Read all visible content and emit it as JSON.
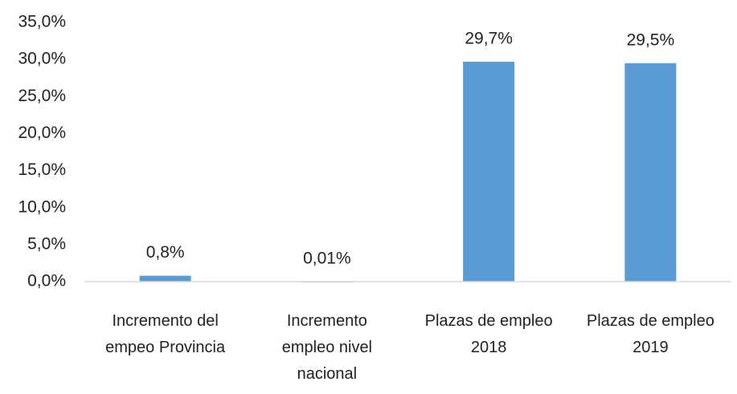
{
  "chart_data": {
    "type": "bar",
    "categories": [
      "Incremento del empeo Provincia",
      "Incremento empleo nivel nacional",
      "Plazas de empleo 2018",
      "Plazas de empleo 2019"
    ],
    "values": [
      0.8,
      0.01,
      29.7,
      29.5
    ],
    "value_labels": [
      "0,8%",
      "0,01%",
      "29,7%",
      "29,5%"
    ],
    "color": "#5b9bd5",
    "ylim": [
      0,
      35
    ],
    "yticks": [
      {
        "value": 0,
        "label": "0,0%"
      },
      {
        "value": 5,
        "label": "5,0%"
      },
      {
        "value": 10,
        "label": "10,0%"
      },
      {
        "value": 15,
        "label": "15,0%"
      },
      {
        "value": 20,
        "label": "20,0%"
      },
      {
        "value": 25,
        "label": "25,0%"
      },
      {
        "value": 30,
        "label": "30,0%"
      },
      {
        "value": 35,
        "label": "35,0%"
      }
    ],
    "grid": false
  }
}
